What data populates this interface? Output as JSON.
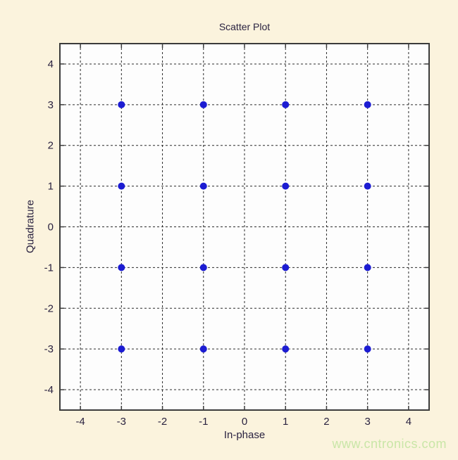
{
  "watermark": {
    "text": "www.cntronics.com",
    "color": "#c9e6a7"
  },
  "colors": {
    "page_bg": "#fbf3dd",
    "plot_bg": "#fdfdfd",
    "axis_border": "#3b3b3b",
    "grid": "#2b2b2b",
    "marker": "#1c1cd2",
    "text": "#2a2240"
  },
  "chart_data": {
    "type": "scatter",
    "title": "Scatter Plot",
    "xlabel": "In-phase",
    "ylabel": "Quadrature",
    "xlim": [
      -4.5,
      4.5
    ],
    "ylim": [
      -4.5,
      4.5
    ],
    "xticks": [
      -4,
      -3,
      -2,
      -1,
      0,
      1,
      2,
      3,
      4
    ],
    "yticks": [
      -4,
      -3,
      -2,
      -1,
      0,
      1,
      2,
      3,
      4
    ],
    "grid": true,
    "grid_style": "dashed",
    "legend": null,
    "marker": "filled-circle",
    "marker_radius": 5,
    "points": [
      [
        -3,
        3
      ],
      [
        -1,
        3
      ],
      [
        1,
        3
      ],
      [
        3,
        3
      ],
      [
        -3,
        1
      ],
      [
        -1,
        1
      ],
      [
        1,
        1
      ],
      [
        3,
        1
      ],
      [
        -3,
        -1
      ],
      [
        -1,
        -1
      ],
      [
        1,
        -1
      ],
      [
        3,
        -1
      ],
      [
        -3,
        -3
      ],
      [
        -1,
        -3
      ],
      [
        1,
        -3
      ],
      [
        3,
        -3
      ]
    ]
  }
}
